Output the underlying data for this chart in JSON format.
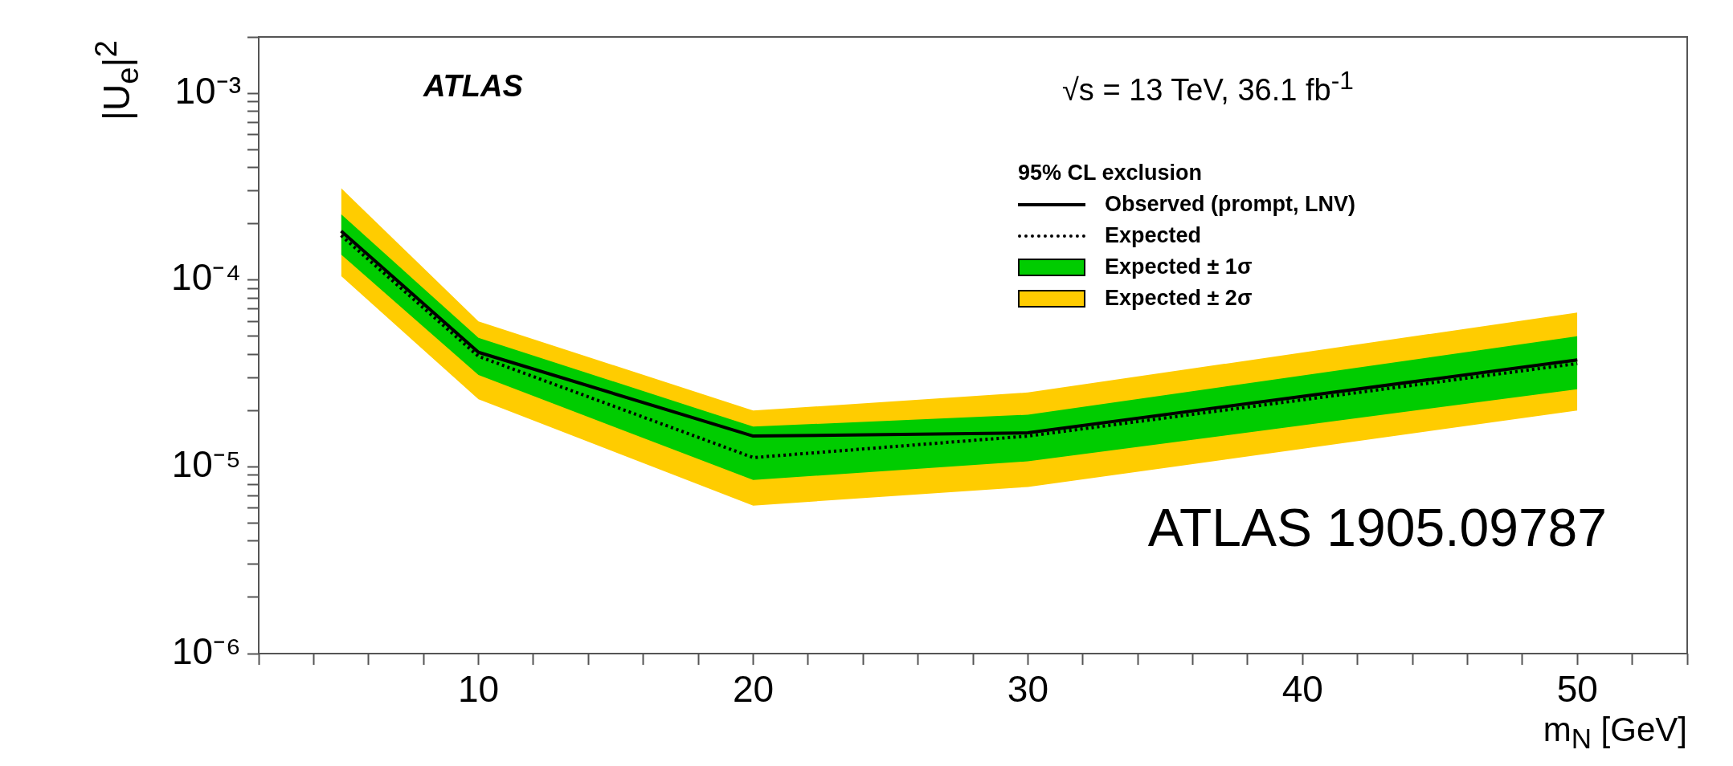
{
  "chart_data": {
    "type": "line",
    "title": "ATLAS",
    "subtitle": "√s = 13 TeV, 36.1 fb$^{-1}$",
    "xlabel": "m$_{N}$ [GeV]",
    "ylabel": "|U$_{e}$|$^{2}$",
    "legend_title": "95% CL exclusion",
    "annotations": [
      "ATLAS 1905.09787"
    ],
    "x": [
      5,
      10,
      20,
      30,
      50
    ],
    "series": [
      {
        "name": "Observed (prompt, LNV)",
        "type": "line",
        "color": "#000000",
        "line_style": "solid",
        "values": [
          0.000183,
          4.1e-05,
          1.46e-05,
          1.52e-05,
          3.73e-05
        ]
      },
      {
        "name": "Expected",
        "type": "line",
        "color": "#000000",
        "line_style": "dotted",
        "values": [
          0.000173,
          3.9e-05,
          1.12e-05,
          1.46e-05,
          3.57e-05
        ]
      },
      {
        "name": "Expected ± 1σ",
        "type": "line",
        "color": "#00cc00",
        "line_style": "dotted",
        "values": [
          null,
          null,
          null,
          null,
          null
        ],
        "lower": [
          0.000137,
          3.1e-05,
          8.5e-06,
          1.07e-05,
          2.6e-05
        ],
        "upper": [
          0.000225,
          4.9e-05,
          1.64e-05,
          1.9e-05,
          5e-05
        ]
      },
      {
        "name": "Expected ± 2σ",
        "type": "line",
        "color": "#ffcc00",
        "line_style": "dotted",
        "values": [
          null,
          null,
          null,
          null,
          null
        ],
        "lower": [
          0.000105,
          2.3e-05,
          6.2e-06,
          7.8e-06,
          2e-05
        ],
        "upper": [
          0.00031,
          6e-05,
          2e-05,
          2.5e-05,
          6.7e-05
        ]
      }
    ],
    "log": "y",
    "xlim": [
      2,
      54
    ],
    "ylim": [
      1e-06,
      0.002
    ],
    "xticks": [
      {
        "value": 2,
        "label": null
      },
      {
        "value": 4,
        "label": null
      },
      {
        "value": 6,
        "label": null
      },
      {
        "value": 8,
        "label": null
      },
      10,
      {
        "value": 12,
        "label": null
      },
      {
        "value": 14,
        "label": null
      },
      {
        "value": 16,
        "label": null
      },
      {
        "value": 18,
        "label": null
      },
      20,
      {
        "value": 22,
        "label": null
      },
      {
        "value": 24,
        "label": null
      },
      {
        "value": 26,
        "label": null
      },
      {
        "value": 28,
        "label": null
      },
      30,
      {
        "value": 32,
        "label": null
      },
      {
        "value": 34,
        "label": null
      },
      {
        "value": 36,
        "label": null
      },
      {
        "value": 38,
        "label": null
      },
      40,
      {
        "value": 42,
        "label": null
      },
      {
        "value": 44,
        "label": null
      },
      {
        "value": 46,
        "label": null
      },
      {
        "value": 48,
        "label": null
      },
      50,
      {
        "value": 52,
        "label": null
      },
      {
        "value": 54,
        "label": null
      }
    ],
    "yticks": [
      {
        "value": 1e-06,
        "label": "10⁻⁶"
      },
      {
        "value": 2e-06,
        "label": null
      },
      {
        "value": 3e-06,
        "label": null
      },
      {
        "value": 4e-06,
        "label": null
      },
      {
        "value": 5e-06,
        "label": null
      },
      {
        "value": 6e-06,
        "label": null
      },
      {
        "value": 7e-06,
        "label": null
      },
      {
        "value": 8e-06,
        "label": null
      },
      {
        "value": 9e-06,
        "label": null
      },
      {
        "value": 1e-05,
        "label": "10⁻⁵"
      },
      {
        "value": 2e-05,
        "label": null
      },
      {
        "value": 3e-05,
        "label": null
      },
      {
        "value": 4e-05,
        "label": null
      },
      {
        "value": 5e-05,
        "label": null
      },
      {
        "value": 6e-05,
        "label": null
      },
      {
        "value": 7e-05,
        "label": null
      },
      {
        "value": 8e-05,
        "label": null
      },
      {
        "value": 9e-05,
        "label": null
      },
      {
        "value": 0.0001,
        "label": "10⁻⁴"
      },
      {
        "value": 0.0002,
        "label": null
      },
      {
        "value": 0.0003,
        "label": null
      },
      {
        "value": 0.0004,
        "label": null
      },
      {
        "value": 0.0005,
        "label": null
      },
      {
        "value": 0.0006,
        "label": null
      },
      {
        "value": 0.0007,
        "label": null
      },
      {
        "value": 0.0008,
        "label": null
      },
      {
        "value": 0.0009,
        "label": null
      },
      {
        "value": 0.001,
        "label": "10⁻³"
      },
      {
        "value": 0.002,
        "label": null
      }
    ],
    "grid": false,
    "legend": "top right"
  }
}
